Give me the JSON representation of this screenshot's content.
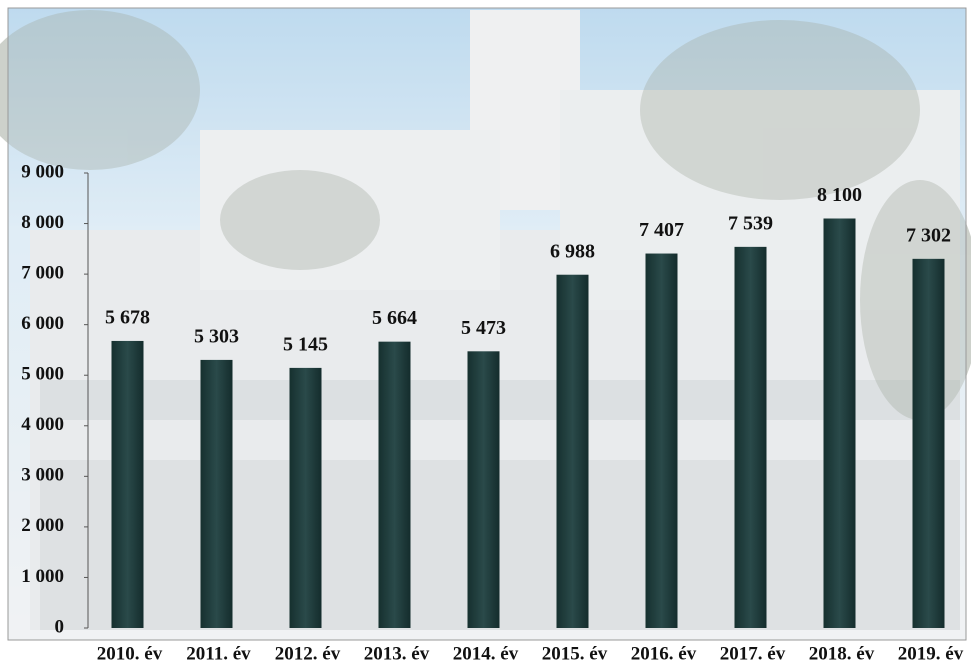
{
  "chart_data": {
    "type": "bar",
    "categories": [
      "2010. év",
      "2011. év",
      "2012. év",
      "2013. év",
      "2014. év",
      "2015. év",
      "2016. év",
      "2017. év",
      "2018. év",
      "2019. év"
    ],
    "values": [
      5678,
      5303,
      5145,
      5664,
      5473,
      6988,
      7407,
      7539,
      8100,
      7302
    ],
    "value_labels": [
      "5 678",
      "5 303",
      "5 145",
      "5 664",
      "5 473",
      "6 988",
      "7 407",
      "7 539",
      "8 100",
      "7 302"
    ],
    "color": "#1e3b3b",
    "ylim": [
      0,
      9000
    ],
    "yticks": [
      0,
      {
        "value": 1000,
        "label": "1 000"
      },
      {
        "value": 2000,
        "label": "2 000"
      },
      {
        "value": 3000,
        "label": "3 000"
      },
      {
        "value": 4000,
        "label": "4 000"
      },
      {
        "value": 5000,
        "label": "5 000"
      },
      {
        "value": 6000,
        "label": "6 000"
      },
      {
        "value": 7000,
        "label": "7 000"
      },
      {
        "value": 8000,
        "label": "8 000"
      },
      {
        "value": 9000,
        "label": "9 000"
      }
    ],
    "grid": false
  }
}
